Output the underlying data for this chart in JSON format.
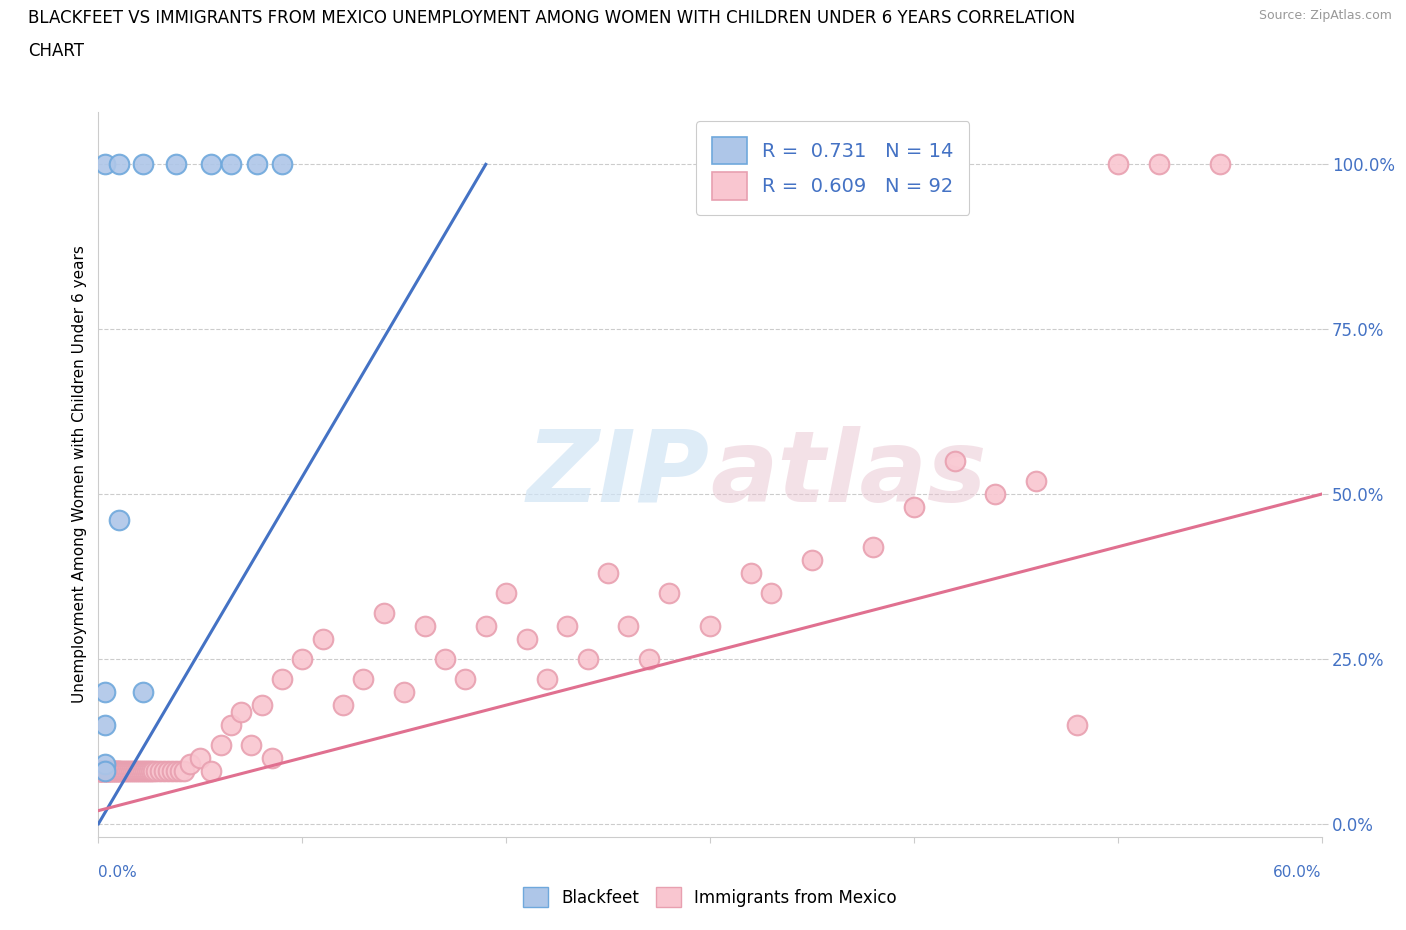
{
  "title_line1": "BLACKFEET VS IMMIGRANTS FROM MEXICO UNEMPLOYMENT AMONG WOMEN WITH CHILDREN UNDER 6 YEARS CORRELATION",
  "title_line2": "CHART",
  "source": "Source: ZipAtlas.com",
  "ylabel": "Unemployment Among Women with Children Under 6 years",
  "watermark_top": "ZIP",
  "watermark_bot": "atlas",
  "xlim": [
    0.0,
    0.6
  ],
  "ylim": [
    -0.02,
    1.08
  ],
  "yticks": [
    0.0,
    0.25,
    0.5,
    0.75,
    1.0
  ],
  "ytick_labels": [
    "0.0%",
    "25.0%",
    "50.0%",
    "75.0%",
    "100.0%"
  ],
  "xtick_bottom_label": "60.0%",
  "xtick_bottom_x": 0.6,
  "xtick_left_label": "0.0%",
  "blackfeet_color": "#aec6e8",
  "blackfeet_edge_color": "#6fa8dc",
  "blackfeet_line_color": "#4472c4",
  "mexico_color": "#f9c6d0",
  "mexico_edge_color": "#e8a0b0",
  "mexico_line_color": "#e07090",
  "legend_label1": "R =  0.731   N = 14",
  "legend_label2": "R =  0.609   N = 92",
  "legend_color": "#4472c4",
  "bottom_legend_label1": "Blackfeet",
  "bottom_legend_label2": "Immigrants from Mexico",
  "blackfeet_x": [
    0.003,
    0.01,
    0.022,
    0.038,
    0.055,
    0.065,
    0.078,
    0.09,
    0.01,
    0.022,
    0.003,
    0.003,
    0.003,
    0.003
  ],
  "blackfeet_y": [
    1.0,
    1.0,
    1.0,
    1.0,
    1.0,
    1.0,
    1.0,
    1.0,
    0.46,
    0.2,
    0.2,
    0.15,
    0.09,
    0.08
  ],
  "mexico_x_low": [
    0.001,
    0.001,
    0.001,
    0.001,
    0.002,
    0.002,
    0.002,
    0.003,
    0.003,
    0.003,
    0.004,
    0.004,
    0.005,
    0.005,
    0.005,
    0.006,
    0.006,
    0.007,
    0.007,
    0.008,
    0.008,
    0.009,
    0.009,
    0.01,
    0.01,
    0.011,
    0.012,
    0.013,
    0.014,
    0.015,
    0.016,
    0.017,
    0.018,
    0.019,
    0.02,
    0.021,
    0.022,
    0.023,
    0.024,
    0.025,
    0.026,
    0.027,
    0.028,
    0.03,
    0.032,
    0.034,
    0.036,
    0.038,
    0.04,
    0.042
  ],
  "mexico_y_low": [
    0.08,
    0.08,
    0.08,
    0.08,
    0.08,
    0.08,
    0.08,
    0.08,
    0.08,
    0.08,
    0.08,
    0.08,
    0.08,
    0.08,
    0.08,
    0.08,
    0.08,
    0.08,
    0.08,
    0.08,
    0.08,
    0.08,
    0.08,
    0.08,
    0.08,
    0.08,
    0.08,
    0.08,
    0.08,
    0.08,
    0.08,
    0.08,
    0.08,
    0.08,
    0.08,
    0.08,
    0.08,
    0.08,
    0.08,
    0.08,
    0.08,
    0.08,
    0.08,
    0.08,
    0.08,
    0.08,
    0.08,
    0.08,
    0.08,
    0.08
  ],
  "mexico_x_mid": [
    0.045,
    0.05,
    0.055,
    0.06,
    0.065,
    0.07,
    0.075,
    0.08,
    0.085,
    0.09,
    0.1,
    0.11,
    0.12,
    0.13,
    0.14,
    0.15,
    0.16,
    0.17,
    0.18,
    0.19,
    0.2,
    0.21,
    0.22,
    0.23,
    0.24,
    0.25
  ],
  "mexico_y_mid": [
    0.09,
    0.1,
    0.08,
    0.12,
    0.15,
    0.17,
    0.12,
    0.18,
    0.1,
    0.22,
    0.25,
    0.28,
    0.18,
    0.22,
    0.32,
    0.2,
    0.3,
    0.25,
    0.22,
    0.3,
    0.35,
    0.28,
    0.22,
    0.3,
    0.25,
    0.38
  ],
  "mexico_x_high": [
    0.26,
    0.27,
    0.28,
    0.3,
    0.32,
    0.33,
    0.35,
    0.38,
    0.4,
    0.42,
    0.44,
    0.46,
    0.48,
    0.5,
    0.52,
    0.55
  ],
  "mexico_y_high": [
    0.3,
    0.25,
    0.35,
    0.3,
    0.38,
    0.35,
    0.4,
    0.42,
    0.48,
    0.55,
    0.5,
    0.52,
    0.15,
    1.0,
    1.0,
    1.0
  ],
  "bf_trend_x": [
    0.0,
    0.19
  ],
  "bf_trend_y": [
    0.0,
    1.0
  ],
  "mx_trend_x": [
    0.0,
    0.6
  ],
  "mx_trend_y": [
    0.02,
    0.5
  ]
}
